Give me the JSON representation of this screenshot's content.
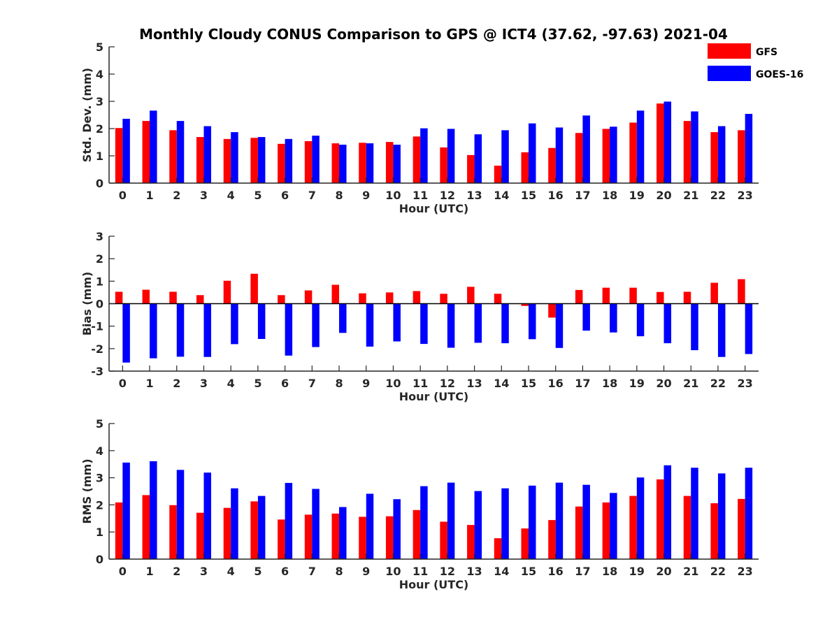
{
  "title": "Monthly Cloudy CONUS Comparison to GPS @ ICT4 (37.62, -97.63) 2021-04",
  "legend": [
    {
      "name": "GFS",
      "color": "#ff0000"
    },
    {
      "name": "GOES-16",
      "color": "#0000ff"
    }
  ],
  "chart_data": [
    {
      "type": "bar",
      "ylabel": "Std. Dev. (mm)",
      "xlabel": "Hour (UTC)",
      "ylim": [
        0,
        5
      ],
      "yticks": [
        0,
        1,
        2,
        3,
        4,
        5
      ],
      "categories": [
        0,
        1,
        2,
        3,
        4,
        5,
        6,
        7,
        8,
        9,
        10,
        11,
        12,
        13,
        14,
        15,
        16,
        17,
        18,
        19,
        20,
        21,
        22,
        23
      ],
      "series": [
        {
          "name": "GFS",
          "color": "#ff0000",
          "values": [
            2.02,
            2.28,
            1.94,
            1.69,
            1.62,
            1.66,
            1.44,
            1.54,
            1.46,
            1.48,
            1.51,
            1.71,
            1.31,
            1.03,
            0.64,
            1.13,
            1.29,
            1.84,
            1.99,
            2.22,
            2.92,
            2.28,
            1.87,
            1.94
          ]
        },
        {
          "name": "GOES-16",
          "color": "#0000ff",
          "values": [
            2.36,
            2.66,
            2.28,
            2.09,
            1.87,
            1.69,
            1.62,
            1.74,
            1.41,
            1.46,
            1.41,
            2.01,
            1.99,
            1.79,
            1.94,
            2.19,
            2.04,
            2.48,
            2.07,
            2.66,
            2.99,
            2.63,
            2.09,
            2.54
          ]
        }
      ]
    },
    {
      "type": "bar",
      "ylabel": "Bias (mm)",
      "xlabel": "Hour (UTC)",
      "ylim": [
        -3,
        3
      ],
      "yticks": [
        -3,
        -2,
        -1,
        0,
        1,
        2,
        3
      ],
      "categories": [
        0,
        1,
        2,
        3,
        4,
        5,
        6,
        7,
        8,
        9,
        10,
        11,
        12,
        13,
        14,
        15,
        16,
        17,
        18,
        19,
        20,
        21,
        22,
        23
      ],
      "series": [
        {
          "name": "GFS",
          "color": "#ff0000",
          "values": [
            0.53,
            0.62,
            0.53,
            0.38,
            1.02,
            1.33,
            0.38,
            0.59,
            0.84,
            0.46,
            0.5,
            0.56,
            0.44,
            0.75,
            0.44,
            -0.1,
            -0.62,
            0.61,
            0.71,
            0.71,
            0.52,
            0.53,
            0.93,
            1.09
          ]
        },
        {
          "name": "GOES-16",
          "color": "#0000ff",
          "values": [
            -2.62,
            -2.43,
            -2.36,
            -2.37,
            -1.8,
            -1.57,
            -2.31,
            -1.93,
            -1.3,
            -1.91,
            -1.68,
            -1.79,
            -1.96,
            -1.74,
            -1.76,
            -1.58,
            -1.97,
            -1.2,
            -1.28,
            -1.45,
            -1.76,
            -2.07,
            -2.37,
            -2.24
          ]
        }
      ]
    },
    {
      "type": "bar",
      "ylabel": "RMS (mm)",
      "xlabel": "Hour (UTC)",
      "ylim": [
        0,
        5
      ],
      "yticks": [
        0,
        1,
        2,
        3,
        4,
        5
      ],
      "categories": [
        0,
        1,
        2,
        3,
        4,
        5,
        6,
        7,
        8,
        9,
        10,
        11,
        12,
        13,
        14,
        15,
        16,
        17,
        18,
        19,
        20,
        21,
        22,
        23
      ],
      "series": [
        {
          "name": "GFS",
          "color": "#ff0000",
          "values": [
            2.09,
            2.36,
            1.99,
            1.71,
            1.89,
            2.13,
            1.46,
            1.64,
            1.68,
            1.56,
            1.58,
            1.81,
            1.38,
            1.26,
            0.77,
            1.13,
            1.44,
            1.94,
            2.09,
            2.33,
            2.94,
            2.33,
            2.06,
            2.22
          ]
        },
        {
          "name": "GOES-16",
          "color": "#0000ff",
          "values": [
            3.56,
            3.61,
            3.29,
            3.19,
            2.61,
            2.33,
            2.81,
            2.59,
            1.92,
            2.41,
            2.21,
            2.69,
            2.82,
            2.51,
            2.61,
            2.71,
            2.82,
            2.74,
            2.44,
            3.01,
            3.46,
            3.37,
            3.16,
            3.37
          ]
        }
      ]
    }
  ]
}
